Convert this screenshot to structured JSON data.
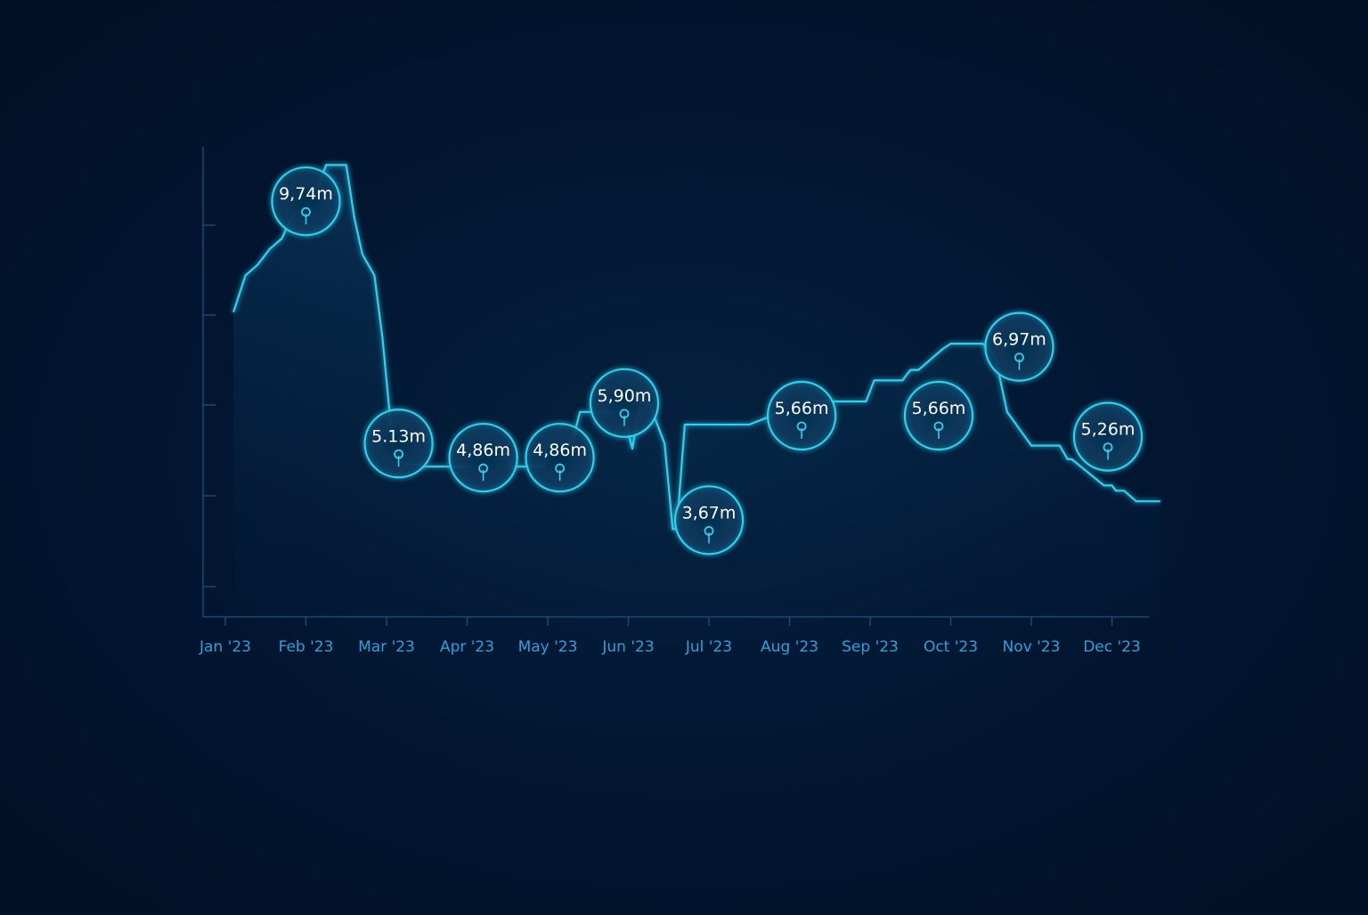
{
  "colors": {
    "background": "#02142b",
    "line": "#2fd0ef",
    "axis": "#1a4a72",
    "tick_label": "#2f9fda",
    "bubble_text": "#ffffff"
  },
  "chart_data": {
    "type": "line",
    "x_ticks": [
      "Jan '23",
      "Feb '23",
      "Mar '23",
      "Apr '23",
      "May '23",
      "Jun '23",
      "Jul '23",
      "Aug '23",
      "Sep '23",
      "Oct '23",
      "Nov '23",
      "Dec '23"
    ],
    "ylim": [
      2,
      11.2
    ],
    "grid": false,
    "series": [
      {
        "x": [
          0.1,
          0.25,
          0.4,
          0.55,
          0.7,
          0.85,
          1.0,
          1.1,
          1.25,
          1.5,
          1.6,
          1.7,
          1.85,
          1.95,
          2.05,
          2.1,
          2.2,
          2.25,
          2.4,
          2.45,
          2.5,
          2.7,
          3.1,
          3.15,
          3.5,
          3.55,
          3.95,
          4.0,
          4.3,
          4.4,
          4.5,
          4.95,
          5.0,
          5.05,
          5.15,
          5.25,
          5.45,
          5.55,
          5.6,
          5.7,
          5.75,
          5.8,
          5.9,
          6.0,
          6.07,
          6.1,
          6.5,
          6.9,
          7.2,
          7.4,
          7.5,
          7.85,
          7.95,
          8.05,
          8.15,
          8.4,
          8.5,
          8.6,
          8.9,
          9.0,
          9.25,
          9.4,
          9.55,
          9.7,
          10.0,
          10.05,
          10.3,
          10.35,
          10.45,
          10.5,
          10.9,
          11.0,
          11.05,
          11.15,
          11.3,
          11.45,
          11.6
        ],
        "y": [
          7.8,
          8.5,
          8.7,
          9.0,
          9.2,
          9.7,
          9.74,
          9.95,
          10.6,
          10.6,
          9.6,
          8.9,
          8.5,
          7.3,
          5.7,
          5.2,
          4.95,
          4.9,
          4.9,
          4.86,
          4.86,
          4.86,
          4.86,
          5.1,
          5.1,
          4.86,
          4.86,
          5.3,
          5.3,
          5.9,
          5.9,
          5.9,
          5.5,
          5.2,
          6.1,
          6.1,
          5.3,
          3.67,
          3.67,
          5.66,
          5.66,
          5.66,
          5.66,
          5.66,
          5.66,
          5.66,
          5.66,
          5.9,
          5.9,
          6.1,
          6.1,
          6.1,
          6.1,
          6.5,
          6.5,
          6.5,
          6.7,
          6.7,
          7.1,
          7.2,
          7.2,
          7.2,
          6.97,
          5.9,
          5.26,
          5.26,
          5.26,
          5.26,
          5.0,
          5.0,
          4.5,
          4.5,
          4.4,
          4.4,
          4.2,
          4.2,
          4.2
        ]
      }
    ],
    "annotations": [
      {
        "label": "9,74m",
        "x": 1.0,
        "y": 9.74
      },
      {
        "label": "5.13m",
        "x": 2.15,
        "y": 5.13
      },
      {
        "label": "4,86m",
        "x": 3.2,
        "y": 4.86
      },
      {
        "label": "4,86m",
        "x": 4.15,
        "y": 4.86
      },
      {
        "label": "5,90m",
        "x": 4.95,
        "y": 5.9
      },
      {
        "label": "3,67m",
        "x": 6.0,
        "y": 3.67
      },
      {
        "label": "5,66m",
        "x": 7.15,
        "y": 5.66
      },
      {
        "label": "5,66m",
        "x": 8.85,
        "y": 5.66
      },
      {
        "label": "6,97m",
        "x": 9.85,
        "y": 6.97
      },
      {
        "label": "5,26m",
        "x": 10.95,
        "y": 5.26
      }
    ]
  }
}
